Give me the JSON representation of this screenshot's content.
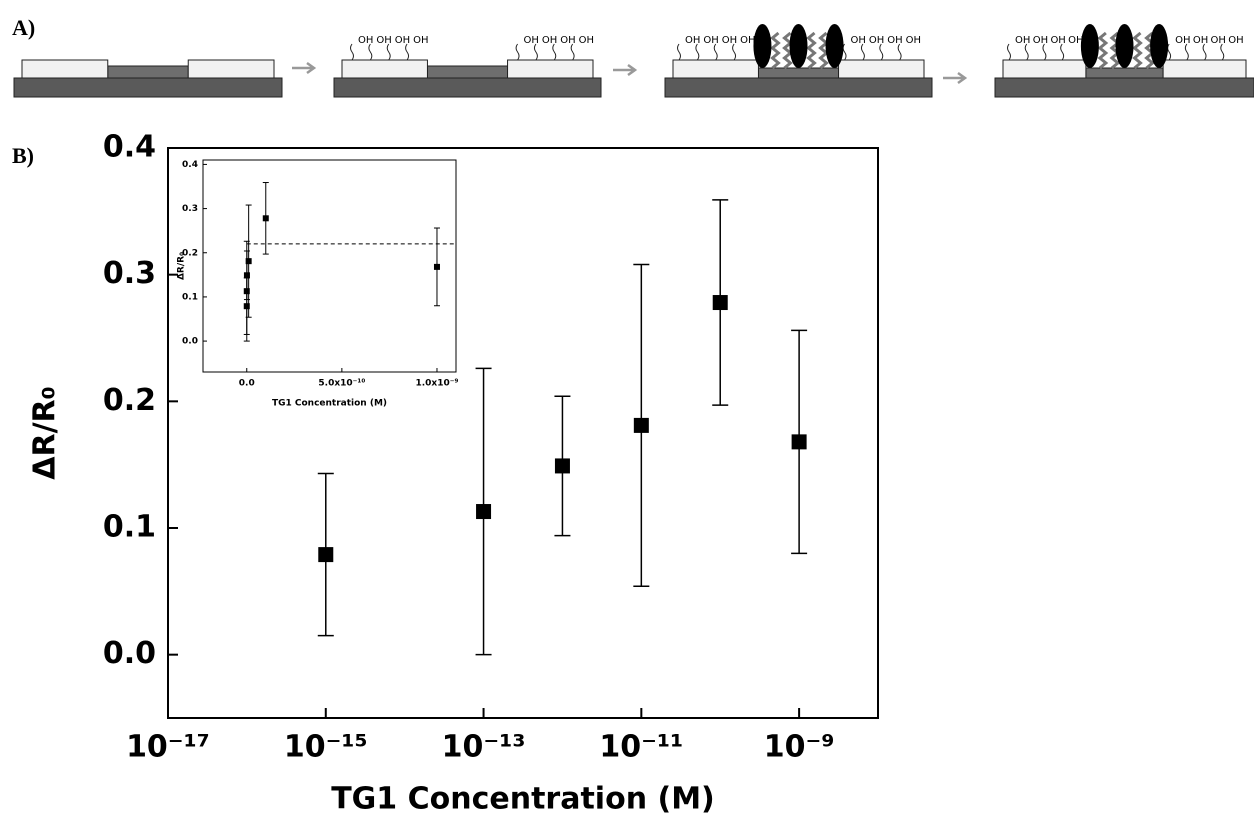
{
  "figure": {
    "panel_labels": [
      "A)",
      "B)"
    ],
    "schematic": {
      "hydroxyl_label": "OH"
    }
  },
  "chart_data": [
    {
      "type": "scatter",
      "xscale": "log",
      "x": [
        1e-15,
        1e-13,
        1e-12,
        1e-11,
        1e-10,
        1e-09
      ],
      "values": [
        0.079,
        0.113,
        0.149,
        0.181,
        0.278,
        0.168
      ],
      "errors": [
        0.064,
        0.113,
        0.055,
        0.127,
        0.081,
        0.088
      ],
      "color": "#000000",
      "xlim": [
        1e-17,
        1e-08
      ],
      "ylim": [
        -0.05,
        0.4
      ],
      "xticks": [
        {
          "value": 1e-17,
          "label": "10⁻¹⁷"
        },
        {
          "value": 1e-15,
          "label": "10⁻¹⁵"
        },
        {
          "value": 1e-13,
          "label": "10⁻¹³"
        },
        {
          "value": 1e-11,
          "label": "10⁻¹¹"
        },
        {
          "value": 1e-09,
          "label": "10⁻⁹"
        }
      ],
      "yticks": [
        {
          "value": 0,
          "label": "0.0"
        },
        0.1,
        0.2,
        0.3,
        0.4
      ],
      "xlabel": "TG1 Concentration (M)",
      "ylabel": "ΔR/R₀"
    },
    {
      "type": "scatter",
      "xscale": "linear",
      "x": [
        1e-15,
        1e-13,
        1e-12,
        1e-11,
        1e-10,
        1e-09
      ],
      "values": [
        0.079,
        0.113,
        0.149,
        0.181,
        0.278,
        0.168
      ],
      "errors": [
        0.064,
        0.113,
        0.055,
        0.127,
        0.081,
        0.088
      ],
      "color": "#000000",
      "hline": 0.22,
      "xlim": [
        -2.3e-10,
        1.1e-09
      ],
      "ylim": [
        -0.07,
        0.41
      ],
      "xticks": [
        {
          "value": 0,
          "label": "0.0"
        },
        {
          "value": 5e-10,
          "label": "5.0x10⁻¹⁰"
        },
        {
          "value": 1e-09,
          "label": "1.0x10⁻⁹"
        }
      ],
      "yticks": [
        {
          "value": 0,
          "label": "0.0"
        },
        0.1,
        0.2,
        0.3,
        0.4
      ],
      "xlabel": "TG1 Concentration (M)",
      "ylabel": "ΔR/R₀"
    }
  ]
}
